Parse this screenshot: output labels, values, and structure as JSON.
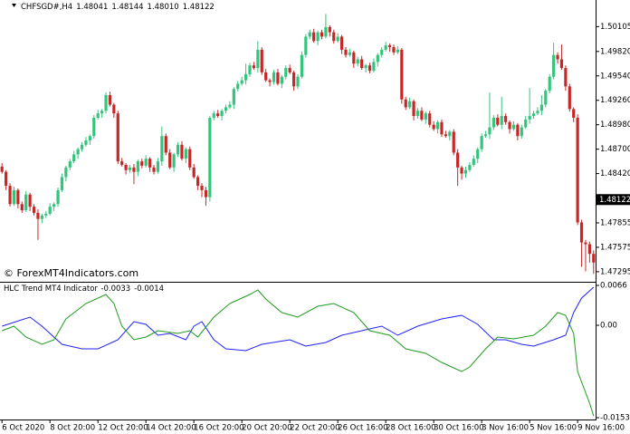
{
  "chart_data": [
    {
      "type": "candlestick",
      "title": "CHFSGD#,H4",
      "header_values": [
        1.48041,
        1.48144,
        {
          "value": 1.4801,
          "label": "1.48010"
        },
        1.48122
      ],
      "annotation": "© ForexMT4Indicators.com",
      "up_color": "#34c47c",
      "down_color": "#c62828",
      "xlim": [
        -0.5,
        148.5
      ],
      "ylim": [
        1.4719,
        1.5041
      ],
      "yticks": [
        1.50105,
        {
          "value": 1.4982,
          "label": "1.49820"
        },
        {
          "value": 1.4954,
          "label": "1.49540"
        },
        {
          "value": 1.4926,
          "label": "1.49260"
        },
        {
          "value": 1.4898,
          "label": "1.48980"
        },
        {
          "value": 1.487,
          "label": "1.48700"
        },
        {
          "value": 1.4842,
          "label": "1.48420"
        },
        1.47855,
        1.47575,
        1.47295
      ],
      "ohlc": [
        [
          1.485,
          1.4854,
          1.4842,
          1.4844
        ],
        [
          1.4844,
          1.4846,
          1.4823,
          1.4828
        ],
        [
          1.4828,
          1.4831,
          1.4804,
          1.4807
        ],
        [
          1.4807,
          1.4827,
          1.4805,
          1.4823
        ],
        [
          1.4823,
          1.4825,
          1.4802,
          1.4807
        ],
        [
          1.4807,
          1.481,
          1.4797,
          1.48
        ],
        [
          1.48,
          1.4822,
          1.4798,
          1.4818
        ],
        [
          1.4818,
          1.482,
          1.4799,
          1.4804
        ],
        [
          1.4804,
          1.4807,
          1.4794,
          1.4797
        ],
        [
          1.4797,
          1.4801,
          1.4766,
          1.479
        ],
        [
          1.479,
          1.4796,
          1.4785,
          1.4794
        ],
        [
          1.4794,
          1.4799,
          1.4791,
          1.4796
        ],
        [
          1.4796,
          1.4808,
          1.4794,
          1.4804
        ],
        [
          1.4804,
          1.4809,
          1.4799,
          1.4807
        ],
        [
          1.4807,
          1.4826,
          1.4804,
          1.4823
        ],
        [
          1.4823,
          1.4842,
          1.4821,
          1.4838
        ],
        [
          1.4838,
          1.4851,
          1.4833,
          1.4849
        ],
        [
          1.4849,
          1.4859,
          1.4846,
          1.4856
        ],
        [
          1.4856,
          1.4868,
          1.4854,
          1.4864
        ],
        [
          1.4864,
          1.4872,
          1.4859,
          1.487
        ],
        [
          1.487,
          1.4878,
          1.4867,
          1.4875
        ],
        [
          1.4875,
          1.4884,
          1.4873,
          1.488
        ],
        [
          1.488,
          1.4887,
          1.4875,
          1.4885
        ],
        [
          1.4885,
          1.4909,
          1.4882,
          1.4906
        ],
        [
          1.4906,
          1.4915,
          1.4904,
          1.4911
        ],
        [
          1.4911,
          1.4916,
          1.4906,
          1.4914
        ],
        [
          1.4914,
          1.4935,
          1.4911,
          1.4932
        ],
        [
          1.4932,
          1.4936,
          1.4919,
          1.4921
        ],
        [
          1.4921,
          1.4923,
          1.4906,
          1.4911
        ],
        [
          1.4911,
          1.4914,
          1.4853,
          1.4856
        ],
        [
          1.4856,
          1.486,
          1.485,
          1.4852
        ],
        [
          1.4852,
          1.4854,
          1.4841,
          1.4846
        ],
        [
          1.4846,
          1.4852,
          1.4843,
          1.4849
        ],
        [
          1.4849,
          1.4853,
          1.483,
          1.4844
        ],
        [
          1.4844,
          1.4858,
          1.4839,
          1.4856
        ],
        [
          1.4856,
          1.4859,
          1.4848,
          1.4851
        ],
        [
          1.4851,
          1.4863,
          1.4849,
          1.4859
        ],
        [
          1.4859,
          1.4861,
          1.4844,
          1.4849
        ],
        [
          1.4849,
          1.4852,
          1.4841,
          1.4844
        ],
        [
          1.4844,
          1.486,
          1.4842,
          1.4856
        ],
        [
          1.4856,
          1.4896,
          1.4851,
          1.4885
        ],
        [
          1.4885,
          1.4888,
          1.4863,
          1.4866
        ],
        [
          1.4866,
          1.487,
          1.4847,
          1.4849
        ],
        [
          1.4849,
          1.4866,
          1.4844,
          1.4864
        ],
        [
          1.4864,
          1.4878,
          1.4861,
          1.4875
        ],
        [
          1.4875,
          1.4879,
          1.4857,
          1.4859
        ],
        [
          1.4859,
          1.4872,
          1.4854,
          1.487
        ],
        [
          1.487,
          1.4873,
          1.4846,
          1.4849
        ],
        [
          1.4849,
          1.4853,
          1.4836,
          1.4838
        ],
        [
          1.4838,
          1.484,
          1.4823,
          1.4828
        ],
        [
          1.4828,
          1.4831,
          1.4815,
          1.4823
        ],
        [
          1.4823,
          1.4827,
          1.4805,
          1.4815
        ],
        [
          1.4815,
          1.4908,
          1.481,
          1.4906
        ],
        [
          1.4906,
          1.4914,
          1.4903,
          1.4911
        ],
        [
          1.4911,
          1.4915,
          1.4906,
          1.4908
        ],
        [
          1.4908,
          1.4916,
          1.4903,
          1.4914
        ],
        [
          1.4914,
          1.4921,
          1.4911,
          1.4918
        ],
        [
          1.4918,
          1.4925,
          1.4916,
          1.4921
        ],
        [
          1.4921,
          1.4941,
          1.4916,
          1.4939
        ],
        [
          1.4939,
          1.4948,
          1.4936,
          1.4945
        ],
        [
          1.4945,
          1.4953,
          1.4943,
          1.4949
        ],
        [
          1.4949,
          1.4968,
          1.4944,
          1.4956
        ],
        [
          1.4956,
          1.4969,
          1.4953,
          1.4966
        ],
        [
          1.4966,
          1.497,
          1.4961,
          1.4963
        ],
        [
          1.4963,
          1.4994,
          1.4958,
          1.4984
        ],
        [
          1.4984,
          1.4987,
          1.4955,
          1.4958
        ],
        [
          1.4958,
          1.4962,
          1.4947,
          1.4949
        ],
        [
          1.4949,
          1.4951,
          1.4942,
          1.4947
        ],
        [
          1.4947,
          1.4961,
          1.4944,
          1.4958
        ],
        [
          1.4958,
          1.4962,
          1.4943,
          1.4945
        ],
        [
          1.4945,
          1.4955,
          1.494,
          1.4953
        ],
        [
          1.4953,
          1.4966,
          1.495,
          1.4963
        ],
        [
          1.4963,
          1.4967,
          1.4956,
          1.4958
        ],
        [
          1.4958,
          1.496,
          1.4937,
          1.4942
        ],
        [
          1.4942,
          1.4956,
          1.4939,
          1.4953
        ],
        [
          1.4953,
          1.4982,
          1.4951,
          1.4978
        ],
        [
          1.4978,
          1.5002,
          1.4975,
          1.4999
        ],
        [
          1.4999,
          1.5007,
          1.4996,
          1.5004
        ],
        [
          1.5004,
          1.5008,
          1.4992,
          1.4994
        ],
        [
          1.4994,
          1.5006,
          1.4989,
          1.5004
        ],
        [
          1.5004,
          1.5007,
          1.4996,
          1.4999
        ],
        [
          1.4999,
          1.5025,
          1.4997,
          1.501
        ],
        [
          1.501,
          1.5012,
          1.4999,
          1.5004
        ],
        [
          1.5004,
          1.5007,
          1.4991,
          1.4994
        ],
        [
          1.4994,
          1.5003,
          1.4992,
          1.4999
        ],
        [
          1.4999,
          1.5001,
          1.4979,
          1.4984
        ],
        [
          1.4984,
          1.4987,
          1.4975,
          1.4978
        ],
        [
          1.4978,
          1.4985,
          1.4976,
          1.4981
        ],
        [
          1.4981,
          1.4983,
          1.4963,
          1.4968
        ],
        [
          1.4968,
          1.4976,
          1.4965,
          1.4973
        ],
        [
          1.4973,
          1.4977,
          1.4961,
          1.4963
        ],
        [
          1.4963,
          1.4968,
          1.4958,
          1.4966
        ],
        [
          1.4966,
          1.4969,
          1.4957,
          1.496
        ],
        [
          1.496,
          1.4974,
          1.4958,
          1.497
        ],
        [
          1.497,
          1.498,
          1.4965,
          1.4978
        ],
        [
          1.4978,
          1.4987,
          1.4975,
          1.4984
        ],
        [
          1.4984,
          1.4993,
          1.4982,
          1.4989
        ],
        [
          1.4989,
          1.4991,
          1.4982,
          1.4987
        ],
        [
          1.4987,
          1.499,
          1.4978,
          1.4981
        ],
        [
          1.4981,
          1.4988,
          1.4979,
          1.4984
        ],
        [
          1.4984,
          1.4986,
          1.4922,
          1.4927
        ],
        [
          1.4927,
          1.493,
          1.4915,
          1.4918
        ],
        [
          1.4918,
          1.4929,
          1.4916,
          1.4925
        ],
        [
          1.4925,
          1.4927,
          1.4903,
          1.4908
        ],
        [
          1.4908,
          1.4917,
          1.4905,
          1.4914
        ],
        [
          1.4914,
          1.4918,
          1.4902,
          1.4904
        ],
        [
          1.4904,
          1.4913,
          1.4899,
          1.4911
        ],
        [
          1.4911,
          1.4914,
          1.4895,
          1.4898
        ],
        [
          1.4898,
          1.4902,
          1.4891,
          1.4893
        ],
        [
          1.4893,
          1.4903,
          1.4888,
          1.4901
        ],
        [
          1.4901,
          1.4904,
          1.4884,
          1.4887
        ],
        [
          1.4887,
          1.4891,
          1.4883,
          1.4885
        ],
        [
          1.4885,
          1.4892,
          1.488,
          1.489
        ],
        [
          1.489,
          1.4893,
          1.4863,
          1.4866
        ],
        [
          1.4866,
          1.487,
          1.4828,
          1.4849
        ],
        [
          1.4849,
          1.4851,
          1.4835,
          1.4842
        ],
        [
          1.4842,
          1.485,
          1.4837,
          1.4846
        ],
        [
          1.4846,
          1.4855,
          1.4844,
          1.4852
        ],
        [
          1.4852,
          1.4863,
          1.485,
          1.4859
        ],
        [
          1.4859,
          1.4872,
          1.4854,
          1.487
        ],
        [
          1.487,
          1.4888,
          1.4867,
          1.4885
        ],
        [
          1.4885,
          1.4891,
          1.4883,
          1.4887
        ],
        [
          1.4887,
          1.4935,
          1.4882,
          1.4895
        ],
        [
          1.4895,
          1.4909,
          1.4892,
          1.4906
        ],
        [
          1.4906,
          1.491,
          1.4896,
          1.4898
        ],
        [
          1.4898,
          1.493,
          1.4893,
          1.4908
        ],
        [
          1.4908,
          1.4911,
          1.4898,
          1.4901
        ],
        [
          1.4901,
          1.4903,
          1.4888,
          1.4893
        ],
        [
          1.4893,
          1.4902,
          1.4891,
          1.4898
        ],
        [
          1.4898,
          1.49,
          1.488,
          1.4885
        ],
        [
          1.4885,
          1.4898,
          1.4882,
          1.4895
        ],
        [
          1.4895,
          1.4908,
          1.4893,
          1.4904
        ],
        [
          1.4904,
          1.494,
          1.4899,
          1.4908
        ],
        [
          1.4908,
          1.4914,
          1.4905,
          1.4911
        ],
        [
          1.4911,
          1.4918,
          1.4909,
          1.4914
        ],
        [
          1.4914,
          1.4932,
          1.4909,
          1.4921
        ],
        [
          1.4921,
          1.4939,
          1.4918,
          1.4937
        ],
        [
          1.4937,
          1.4956,
          1.4934,
          1.4953
        ],
        [
          1.4953,
          1.4992,
          1.495,
          1.4978
        ],
        [
          1.4978,
          1.4981,
          1.4968,
          1.4973
        ],
        [
          1.4973,
          1.499,
          1.4961,
          1.4963
        ],
        [
          1.4963,
          1.4966,
          1.4937,
          1.4942
        ],
        [
          1.4942,
          1.4945,
          1.4913,
          1.4916
        ],
        [
          1.4916,
          1.4918,
          1.4901,
          1.4906
        ],
        [
          1.4906,
          1.491,
          1.4783,
          1.4786
        ],
        [
          1.4786,
          1.4789,
          1.4735,
          1.4763
        ],
        [
          1.4763,
          1.4766,
          1.473,
          1.4761
        ],
        [
          1.4761,
          1.4764,
          1.474,
          1.475
        ],
        [
          1.475,
          1.4754,
          1.4727,
          1.474
        ]
      ]
    },
    {
      "type": "line",
      "title": "HLC Trend MT4 Indicator",
      "header_values": [
        -0.0033,
        -0.0014
      ],
      "xlim": [
        -0.5,
        148.5
      ],
      "ylim": [
        -0.0153,
        0.0066
      ],
      "yticks": [
        0.0066,
        {
          "value": 0,
          "label": "0.00"
        },
        -0.0153
      ],
      "xticks": [
        {
          "value": 0,
          "label": "6 Oct 2020"
        },
        {
          "value": 12,
          "label": "8 Oct 20:00"
        },
        {
          "value": 24,
          "label": "12 Oct 20:00"
        },
        {
          "value": 36,
          "label": "14 Oct 20:00"
        },
        {
          "value": 48,
          "label": "16 Oct 20:00"
        },
        {
          "value": 60,
          "label": "20 Oct 20:00"
        },
        {
          "value": 72,
          "label": "22 Oct 20:00"
        },
        {
          "value": 84,
          "label": "26 Oct 16:00"
        },
        {
          "value": 96,
          "label": "28 Oct 16:00"
        },
        {
          "value": 108,
          "label": "30 Oct 16:00"
        },
        {
          "value": 120,
          "label": "3 Nov 16:00"
        },
        {
          "value": 132,
          "label": "5 Nov 16:00"
        },
        {
          "value": 144,
          "label": "9 Nov 16:00"
        }
      ],
      "series": [
        {
          "color": "#2020ff",
          "x": [
            0,
            7,
            10,
            15,
            20,
            24,
            29,
            33,
            36,
            39,
            42,
            46,
            48,
            50,
            53,
            56,
            61,
            65,
            72,
            76,
            81,
            85,
            90,
            95,
            99,
            104,
            110,
            115,
            119,
            123,
            126,
            130,
            133,
            138,
            141,
            143,
            145,
            148
          ],
          "values": [
            -0.00015,
            0.00135,
            -0.00015,
            -0.00315,
            -0.0039,
            -0.0039,
            -0.0024,
            0.0006,
            0.00015,
            -0.00165,
            -0.00135,
            -0.0024,
            -0.00015,
            0.0006,
            -0.0024,
            -0.0039,
            -0.0042,
            -0.00315,
            -0.0024,
            -0.00345,
            -0.00285,
            -0.00165,
            -0.0009,
            -0.00015,
            -0.00165,
            -0.00015,
            0.00105,
            0.00165,
            0.00015,
            -0.0024,
            -0.0024,
            -0.00315,
            -0.00345,
            -0.0024,
            -0.00165,
            0.0021,
            0.0045,
            0.0063
          ]
        },
        {
          "color": "#1f9a1f",
          "x": [
            0,
            3,
            6,
            10,
            13,
            16,
            21,
            26,
            28,
            30,
            33,
            36,
            39,
            44,
            47,
            49,
            53,
            57,
            62,
            64,
            66,
            70,
            74,
            79,
            83,
            88,
            92,
            97,
            101,
            106,
            110,
            115,
            117,
            121,
            124,
            128,
            133,
            136,
            139,
            141,
            143,
            144,
            147,
            148
          ],
          "values": [
            -0.0009,
            -0.00015,
            -0.00195,
            -0.00315,
            -0.0024,
            0.00105,
            0.0036,
            0.0051,
            0.0036,
            -0.00015,
            -0.0024,
            -0.00195,
            -0.0009,
            -0.00135,
            -0.0009,
            -0.00195,
            0.00135,
            0.0036,
            0.0051,
            0.00585,
            0.00435,
            0.0021,
            0.00135,
            0.00315,
            0.0036,
            0.0021,
            -0.0009,
            -0.00165,
            -0.0039,
            -0.00465,
            -0.00615,
            -0.00765,
            -0.0069,
            -0.0039,
            -0.00195,
            -0.00225,
            -0.00165,
            -0.00015,
            0.0021,
            0.00165,
            -0.00135,
            -0.00765,
            -0.0129,
            -0.015
          ]
        }
      ]
    }
  ]
}
